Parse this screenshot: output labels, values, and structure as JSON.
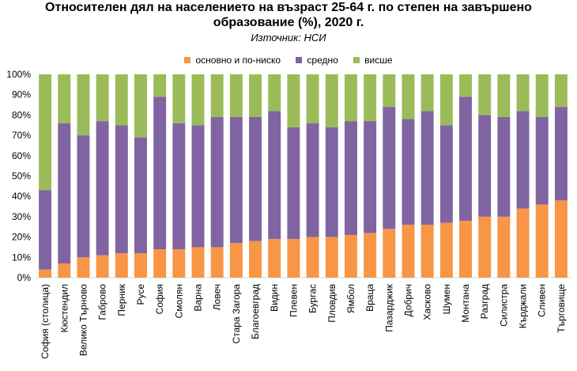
{
  "chart_data": {
    "type": "bar",
    "stacked": true,
    "title_lines": [
      "Относителен дял на населението на възраст 25-64 г. по степен на завършено",
      "образование (%), 2020 г."
    ],
    "subtitle": "Източник: НСИ",
    "xlabel": "",
    "ylabel": "",
    "ylim": [
      0,
      100
    ],
    "y_ticks": [
      "0%",
      "10%",
      "20%",
      "30%",
      "40%",
      "50%",
      "60%",
      "70%",
      "80%",
      "90%",
      "100%"
    ],
    "legend_position": "top",
    "categories": [
      "София (столица)",
      "Кюстендил",
      "Велико Търново",
      "Габрово",
      "Перник",
      "Русе",
      "София",
      "Смолян",
      "Варна",
      "Ловеч",
      "Стара Загора",
      "Благоевград",
      "Видин",
      "Плевен",
      "Бургас",
      "Пловдив",
      "Ямбол",
      "Враца",
      "Пазарджик",
      "Добрич",
      "Хасково",
      "Шумен",
      "Монтана",
      "Разград",
      "Силистра",
      "Кърджали",
      "Сливен",
      "Търговище"
    ],
    "series": [
      {
        "name": "основно и по-ниско",
        "color": "#F79646",
        "values": [
          4,
          7,
          10,
          11,
          12,
          12,
          14,
          14,
          15,
          15,
          17,
          18,
          19,
          19,
          20,
          20,
          21,
          22,
          24,
          26,
          26,
          27,
          28,
          30,
          30,
          34,
          36,
          38
        ]
      },
      {
        "name": "средно",
        "color": "#8064A2",
        "values": [
          39,
          69,
          60,
          66,
          63,
          57,
          75,
          62,
          60,
          64,
          62,
          61,
          63,
          55,
          56,
          54,
          56,
          55,
          60,
          52,
          56,
          48,
          61,
          50,
          49,
          48,
          43,
          46
        ]
      },
      {
        "name": "висше",
        "color": "#9BBB59",
        "values": [
          57,
          24,
          30,
          23,
          25,
          31,
          11,
          24,
          25,
          21,
          21,
          21,
          18,
          26,
          24,
          26,
          23,
          23,
          16,
          22,
          18,
          25,
          11,
          20,
          21,
          18,
          21,
          16
        ]
      }
    ]
  }
}
